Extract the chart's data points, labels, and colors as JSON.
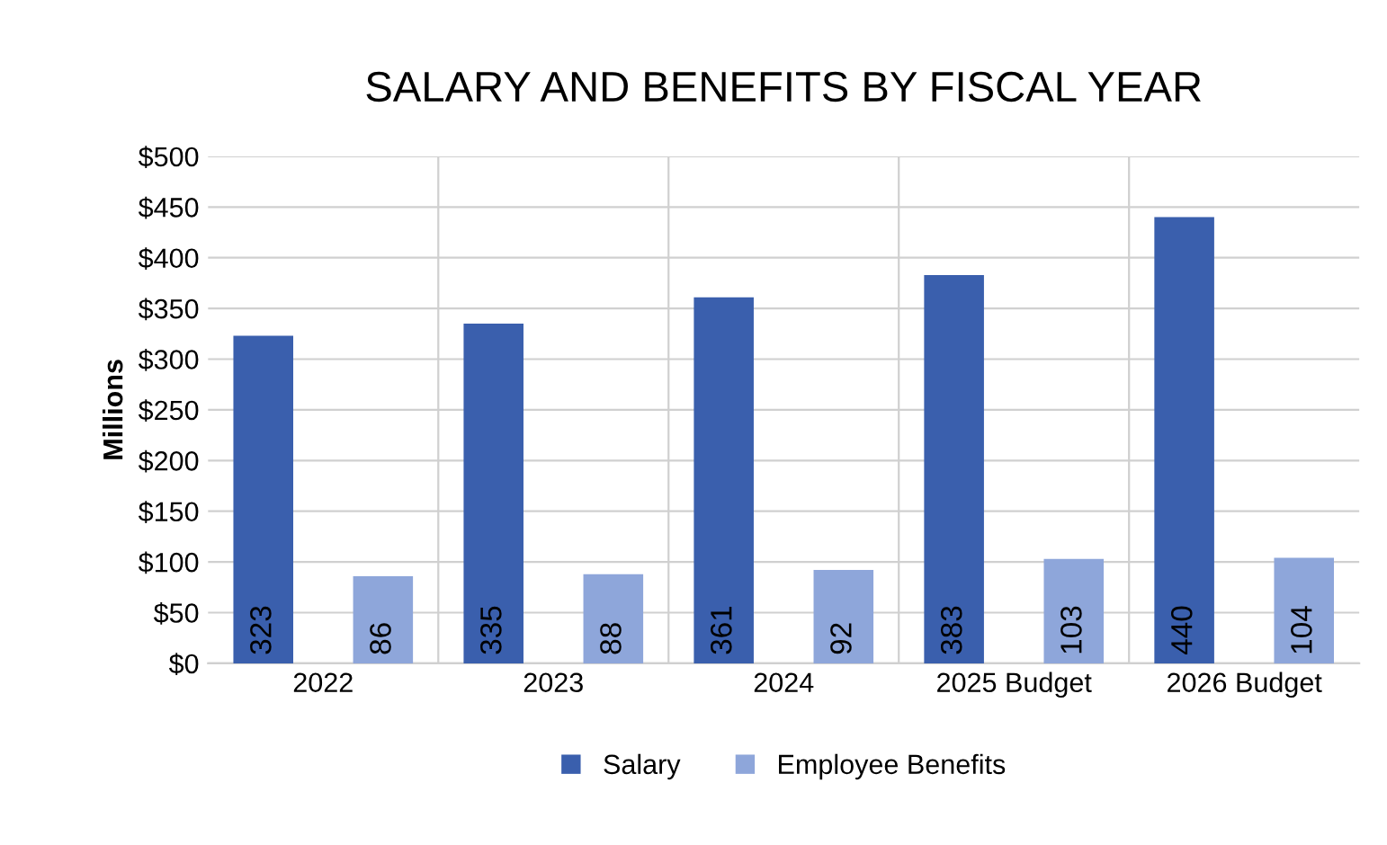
{
  "chart_data": {
    "type": "bar",
    "title": "SALARY AND BENEFITS BY FISCAL YEAR",
    "ylabel": "Millions",
    "categories": [
      "2022",
      "2023",
      "2024",
      "2025 Budget",
      "2026 Budget"
    ],
    "series": [
      {
        "name": "Salary",
        "color": "#3a5fad",
        "values": [
          323,
          335,
          361,
          383,
          440
        ]
      },
      {
        "name": "Employee Benefits",
        "color": "#8ea6da",
        "values": [
          86,
          88,
          92,
          103,
          104
        ]
      }
    ],
    "ylim": [
      0,
      500
    ],
    "yticks": [
      {
        "value": 0,
        "label": "$0"
      },
      {
        "value": 50,
        "label": "$50"
      },
      {
        "value": 100,
        "label": "$100"
      },
      {
        "value": 150,
        "label": "$150"
      },
      {
        "value": 200,
        "label": "$200"
      },
      {
        "value": 250,
        "label": "$250"
      },
      {
        "value": 300,
        "label": "$300"
      },
      {
        "value": 350,
        "label": "$350"
      },
      {
        "value": 400,
        "label": "$400"
      },
      {
        "value": 450,
        "label": "$450"
      },
      {
        "value": 500,
        "label": "$500"
      }
    ],
    "grid": true,
    "legend": "bottom",
    "data_labels": true
  }
}
